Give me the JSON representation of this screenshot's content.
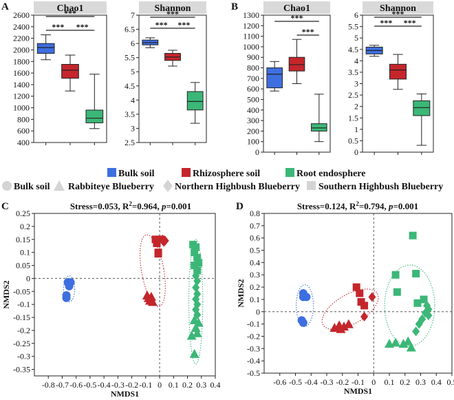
{
  "colors": {
    "bulk": "#3e6fe0",
    "rhizo": "#c4262c",
    "root": "#3bb777",
    "strip": "#d9d9d9",
    "axis": "#222222"
  },
  "legend": {
    "groups": [
      {
        "label": "Bulk soil",
        "color_key": "bulk"
      },
      {
        "label": "Rhizosphere soil",
        "color_key": "rhizo"
      },
      {
        "label": "Root endosphere",
        "color_key": "root"
      }
    ],
    "shapes": [
      {
        "label": "Bulk soil",
        "shape": "circle"
      },
      {
        "label": "Rabbiteye Blueberry",
        "shape": "triangle"
      },
      {
        "label": "Northern Highbush Blueberry",
        "shape": "diamond"
      },
      {
        "label": "Southern Highbush Blueberry",
        "shape": "square"
      }
    ]
  },
  "chart_data": [
    {
      "id": "A-chao1",
      "panel_letter": "A",
      "type": "box",
      "title": "Chao1",
      "ylim": [
        400,
        2600
      ],
      "yticks": [
        "400",
        "600",
        "800",
        "1000",
        "1200",
        "1400",
        "1600",
        "1800",
        "2000",
        "2200",
        "2400",
        "2600"
      ],
      "boxes": [
        {
          "group": "Bulk soil",
          "color_key": "bulk",
          "min": 1830,
          "q1": 1940,
          "median": 2040,
          "q3": 2110,
          "max": 2260
        },
        {
          "group": "Rhizosphere soil",
          "color_key": "rhizo",
          "min": 1290,
          "q1": 1510,
          "median": 1650,
          "q3": 1750,
          "max": 1910
        },
        {
          "group": "Root endosphere",
          "color_key": "root",
          "min": 640,
          "q1": 740,
          "median": 820,
          "q3": 960,
          "max": 1580
        }
      ],
      "brackets": [
        {
          "from": 0,
          "to": 2,
          "label": "***"
        },
        {
          "from": 0,
          "to": 1,
          "label": "***"
        },
        {
          "from": 1,
          "to": 2,
          "label": "***"
        }
      ]
    },
    {
      "id": "A-shannon",
      "panel_letter": "",
      "type": "box",
      "title": "Shannon",
      "ylim": [
        2.5,
        7
      ],
      "yticks": [
        "2.5",
        "3",
        "3.5",
        "4",
        "4.5",
        "5",
        "5.5",
        "6",
        "6.5",
        "7"
      ],
      "boxes": [
        {
          "group": "Bulk soil",
          "color_key": "bulk",
          "min": 5.85,
          "q1": 5.95,
          "median": 6.03,
          "q3": 6.12,
          "max": 6.2
        },
        {
          "group": "Rhizosphere soil",
          "color_key": "rhizo",
          "min": 5.2,
          "q1": 5.4,
          "median": 5.52,
          "q3": 5.65,
          "max": 5.76
        },
        {
          "group": "Root endosphere",
          "color_key": "root",
          "min": 3.18,
          "q1": 3.65,
          "median": 3.95,
          "q3": 4.3,
          "max": 4.62
        }
      ],
      "brackets": [
        {
          "from": 0,
          "to": 2,
          "label": "***"
        },
        {
          "from": 0,
          "to": 1,
          "label": "***"
        },
        {
          "from": 1,
          "to": 2,
          "label": "***"
        }
      ]
    },
    {
      "id": "B-chao1",
      "panel_letter": "B",
      "type": "box",
      "title": "Chao1",
      "ylim": [
        0,
        1300
      ],
      "yticks": [
        "0",
        "100",
        "200",
        "300",
        "400",
        "500",
        "600",
        "700",
        "800",
        "900",
        "1000",
        "1100",
        "1200",
        "1300"
      ],
      "boxes": [
        {
          "group": "Bulk soil",
          "color_key": "bulk",
          "min": 580,
          "q1": 610,
          "median": 740,
          "q3": 800,
          "max": 860
        },
        {
          "group": "Rhizosphere soil",
          "color_key": "rhizo",
          "min": 650,
          "q1": 770,
          "median": 830,
          "q3": 900,
          "max": 1070
        },
        {
          "group": "Root endosphere",
          "color_key": "root",
          "min": 100,
          "q1": 200,
          "median": 230,
          "q3": 270,
          "max": 550
        }
      ],
      "brackets": [
        {
          "from": 0,
          "to": 2,
          "label": "***"
        },
        {
          "from": 1,
          "to": 2,
          "label": "***"
        }
      ]
    },
    {
      "id": "B-shannon",
      "panel_letter": "",
      "type": "box",
      "title": "Shannon",
      "ylim": [
        0,
        6
      ],
      "yticks": [
        "0",
        "0.5",
        "1",
        "1.5",
        "2",
        "2.5",
        "3",
        "3.5",
        "4",
        "4.5",
        "5",
        "5.5",
        "6"
      ],
      "boxes": [
        {
          "group": "Bulk soil",
          "color_key": "bulk",
          "min": 4.2,
          "q1": 4.3,
          "median": 4.45,
          "q3": 4.6,
          "max": 4.68
        },
        {
          "group": "Rhizosphere soil",
          "color_key": "rhizo",
          "min": 2.75,
          "q1": 3.2,
          "median": 3.6,
          "q3": 3.85,
          "max": 4.28
        },
        {
          "group": "Root endosphere",
          "color_key": "root",
          "min": 0.3,
          "q1": 1.6,
          "median": 1.95,
          "q3": 2.25,
          "max": 2.55
        }
      ],
      "brackets": [
        {
          "from": 0,
          "to": 2,
          "label": "***"
        },
        {
          "from": 0,
          "to": 1,
          "label": "***"
        },
        {
          "from": 1,
          "to": 2,
          "label": "***"
        }
      ]
    },
    {
      "id": "C-nmds",
      "panel_letter": "C",
      "type": "scatter",
      "title_parts": [
        "Stress=0.053, R",
        "2",
        "=0.964, ",
        "p",
        "=0.001"
      ],
      "xlabel": "NMDS1",
      "ylabel": "NMDS2",
      "xlim": [
        -0.9,
        0.4
      ],
      "ylim": [
        -0.375,
        0.25
      ],
      "xticks": [
        "-0.8",
        "-0.7",
        "-0.6",
        "-0.5",
        "-0.4",
        "-0.3",
        "-0.2",
        "-0.1",
        "0",
        "0.1",
        "0.2",
        "0.3",
        "0.4"
      ],
      "yticks": [
        "0.25",
        "0.2",
        "0.15",
        "0.1",
        "0.05",
        "0",
        "-0.05",
        "-0.1",
        "-0.15",
        "-0.2",
        "-0.25",
        "-0.3",
        "-0.35"
      ],
      "ellipses": [
        {
          "color_key": "bulk",
          "cx": -0.65,
          "cy": -0.04,
          "rx": 0.04,
          "ry": 0.05,
          "angle_deg": 0
        },
        {
          "color_key": "rhizo",
          "cx": -0.05,
          "cy": 0.03,
          "rx": 0.08,
          "ry": 0.14,
          "angle_deg": -10
        },
        {
          "color_key": "root",
          "cx": 0.26,
          "cy": -0.09,
          "rx": 0.05,
          "ry": 0.24,
          "angle_deg": 0
        }
      ],
      "points": [
        {
          "x": -0.66,
          "y": -0.015,
          "shape": "circle",
          "color_key": "bulk"
        },
        {
          "x": -0.64,
          "y": -0.015,
          "shape": "circle",
          "color_key": "bulk"
        },
        {
          "x": -0.67,
          "y": -0.065,
          "shape": "circle",
          "color_key": "bulk"
        },
        {
          "x": -0.67,
          "y": -0.075,
          "shape": "circle",
          "color_key": "bulk"
        },
        {
          "x": -0.65,
          "y": -0.03,
          "shape": "circle",
          "color_key": "bulk"
        },
        {
          "x": -0.03,
          "y": 0.15,
          "shape": "square",
          "color_key": "rhizo"
        },
        {
          "x": 0.01,
          "y": 0.15,
          "shape": "square",
          "color_key": "rhizo"
        },
        {
          "x": -0.02,
          "y": 0.135,
          "shape": "square",
          "color_key": "rhizo"
        },
        {
          "x": -0.01,
          "y": 0.1,
          "shape": "square",
          "color_key": "rhizo"
        },
        {
          "x": -0.01,
          "y": 0.095,
          "shape": "square",
          "color_key": "rhizo"
        },
        {
          "x": 0.02,
          "y": 0.15,
          "shape": "diamond",
          "color_key": "rhizo"
        },
        {
          "x": 0.03,
          "y": 0.14,
          "shape": "diamond",
          "color_key": "rhizo"
        },
        {
          "x": 0.04,
          "y": 0.145,
          "shape": "diamond",
          "color_key": "rhizo"
        },
        {
          "x": -0.09,
          "y": -0.065,
          "shape": "triangle",
          "color_key": "rhizo"
        },
        {
          "x": -0.08,
          "y": -0.075,
          "shape": "triangle",
          "color_key": "rhizo"
        },
        {
          "x": -0.06,
          "y": -0.07,
          "shape": "triangle",
          "color_key": "rhizo"
        },
        {
          "x": -0.07,
          "y": -0.085,
          "shape": "triangle",
          "color_key": "rhizo"
        },
        {
          "x": -0.05,
          "y": -0.09,
          "shape": "triangle",
          "color_key": "rhizo"
        },
        {
          "x": 0.24,
          "y": 0.13,
          "shape": "square",
          "color_key": "root"
        },
        {
          "x": 0.26,
          "y": 0.12,
          "shape": "square",
          "color_key": "root"
        },
        {
          "x": 0.25,
          "y": 0.1,
          "shape": "square",
          "color_key": "root"
        },
        {
          "x": 0.27,
          "y": 0.08,
          "shape": "square",
          "color_key": "root"
        },
        {
          "x": 0.28,
          "y": 0.06,
          "shape": "square",
          "color_key": "root"
        },
        {
          "x": 0.25,
          "y": 0.05,
          "shape": "square",
          "color_key": "root"
        },
        {
          "x": 0.27,
          "y": 0.03,
          "shape": "square",
          "color_key": "root"
        },
        {
          "x": 0.26,
          "y": 0.01,
          "shape": "diamond",
          "color_key": "root"
        },
        {
          "x": 0.27,
          "y": -0.01,
          "shape": "diamond",
          "color_key": "root"
        },
        {
          "x": 0.26,
          "y": -0.035,
          "shape": "diamond",
          "color_key": "root"
        },
        {
          "x": 0.27,
          "y": -0.06,
          "shape": "diamond",
          "color_key": "root"
        },
        {
          "x": 0.26,
          "y": -0.08,
          "shape": "diamond",
          "color_key": "root"
        },
        {
          "x": 0.27,
          "y": -0.1,
          "shape": "diamond",
          "color_key": "root"
        },
        {
          "x": 0.26,
          "y": -0.12,
          "shape": "diamond",
          "color_key": "root"
        },
        {
          "x": 0.27,
          "y": -0.14,
          "shape": "diamond",
          "color_key": "root"
        },
        {
          "x": 0.25,
          "y": -0.16,
          "shape": "triangle",
          "color_key": "root"
        },
        {
          "x": 0.28,
          "y": -0.17,
          "shape": "triangle",
          "color_key": "root"
        },
        {
          "x": 0.26,
          "y": -0.19,
          "shape": "triangle",
          "color_key": "root"
        },
        {
          "x": 0.23,
          "y": -0.22,
          "shape": "triangle",
          "color_key": "root"
        },
        {
          "x": 0.27,
          "y": -0.21,
          "shape": "triangle",
          "color_key": "root"
        },
        {
          "x": 0.25,
          "y": -0.29,
          "shape": "triangle",
          "color_key": "root"
        }
      ]
    },
    {
      "id": "D-nmds",
      "panel_letter": "D",
      "type": "scatter",
      "title_parts": [
        "Stress=0.124, R",
        "2",
        "=0.794, ",
        "p",
        "=0.001"
      ],
      "xlabel": "NMDS1",
      "ylabel": "NMDS2",
      "xlim": [
        -0.7,
        0.5
      ],
      "ylim": [
        -0.5,
        0.8
      ],
      "xticks": [
        "-0.6",
        "-0.5",
        "-0.4",
        "-0.3",
        "-0.2",
        "-0.1",
        "0",
        "0.1",
        "0.2",
        "0.3",
        "0.4",
        "0.5"
      ],
      "yticks": [
        "0.8",
        "0.7",
        "0.6",
        "0.5",
        "0.4",
        "0.3",
        "0.2",
        "0.1",
        "0",
        "-0.1",
        "-0.2",
        "-0.3",
        "-0.4",
        "-0.5"
      ],
      "ellipses": [
        {
          "color_key": "bulk",
          "cx": -0.44,
          "cy": 0.05,
          "rx": 0.055,
          "ry": 0.17,
          "angle_deg": 0
        },
        {
          "color_key": "rhizo",
          "cx": -0.15,
          "cy": 0.02,
          "rx": 0.2,
          "ry": 0.12,
          "angle_deg": -30
        },
        {
          "color_key": "root",
          "cx": 0.23,
          "cy": 0.05,
          "rx": 0.16,
          "ry": 0.33,
          "angle_deg": 0
        }
      ],
      "points": [
        {
          "x": -0.45,
          "y": 0.15,
          "shape": "circle",
          "color_key": "bulk"
        },
        {
          "x": -0.43,
          "y": 0.12,
          "shape": "circle",
          "color_key": "bulk"
        },
        {
          "x": -0.45,
          "y": 0.12,
          "shape": "circle",
          "color_key": "bulk"
        },
        {
          "x": -0.46,
          "y": -0.07,
          "shape": "circle",
          "color_key": "bulk"
        },
        {
          "x": -0.45,
          "y": -0.09,
          "shape": "circle",
          "color_key": "bulk"
        },
        {
          "x": -0.11,
          "y": 0.2,
          "shape": "square",
          "color_key": "rhizo"
        },
        {
          "x": -0.09,
          "y": 0.15,
          "shape": "square",
          "color_key": "rhizo"
        },
        {
          "x": -0.08,
          "y": 0.08,
          "shape": "square",
          "color_key": "rhizo"
        },
        {
          "x": -0.06,
          "y": 0.05,
          "shape": "square",
          "color_key": "rhizo"
        },
        {
          "x": -0.01,
          "y": 0.12,
          "shape": "diamond",
          "color_key": "rhizo"
        },
        {
          "x": -0.06,
          "y": -0.04,
          "shape": "diamond",
          "color_key": "rhizo"
        },
        {
          "x": -0.25,
          "y": -0.13,
          "shape": "triangle",
          "color_key": "rhizo"
        },
        {
          "x": -0.22,
          "y": -0.11,
          "shape": "triangle",
          "color_key": "rhizo"
        },
        {
          "x": -0.19,
          "y": -0.12,
          "shape": "triangle",
          "color_key": "rhizo"
        },
        {
          "x": -0.16,
          "y": -0.1,
          "shape": "triangle",
          "color_key": "rhizo"
        },
        {
          "x": -0.21,
          "y": -0.14,
          "shape": "triangle",
          "color_key": "rhizo"
        },
        {
          "x": 0.25,
          "y": 0.62,
          "shape": "square",
          "color_key": "root"
        },
        {
          "x": 0.14,
          "y": 0.3,
          "shape": "square",
          "color_key": "root"
        },
        {
          "x": 0.27,
          "y": 0.31,
          "shape": "square",
          "color_key": "root"
        },
        {
          "x": 0.15,
          "y": 0.16,
          "shape": "square",
          "color_key": "root"
        },
        {
          "x": 0.28,
          "y": 0.07,
          "shape": "square",
          "color_key": "root"
        },
        {
          "x": 0.32,
          "y": 0.1,
          "shape": "square",
          "color_key": "root"
        },
        {
          "x": 0.34,
          "y": 0.05,
          "shape": "diamond",
          "color_key": "root"
        },
        {
          "x": 0.35,
          "y": 0.02,
          "shape": "diamond",
          "color_key": "root"
        },
        {
          "x": 0.33,
          "y": -0.01,
          "shape": "diamond",
          "color_key": "root"
        },
        {
          "x": 0.35,
          "y": -0.03,
          "shape": "diamond",
          "color_key": "root"
        },
        {
          "x": 0.31,
          "y": -0.06,
          "shape": "diamond",
          "color_key": "root"
        },
        {
          "x": 0.29,
          "y": -0.1,
          "shape": "diamond",
          "color_key": "root"
        },
        {
          "x": 0.27,
          "y": -0.16,
          "shape": "diamond",
          "color_key": "root"
        },
        {
          "x": 0.1,
          "y": -0.26,
          "shape": "triangle",
          "color_key": "root"
        },
        {
          "x": 0.14,
          "y": -0.25,
          "shape": "triangle",
          "color_key": "root"
        },
        {
          "x": 0.19,
          "y": -0.26,
          "shape": "triangle",
          "color_key": "root"
        },
        {
          "x": 0.24,
          "y": -0.29,
          "shape": "triangle",
          "color_key": "root"
        },
        {
          "x": 0.22,
          "y": -0.24,
          "shape": "triangle",
          "color_key": "root"
        }
      ]
    }
  ]
}
